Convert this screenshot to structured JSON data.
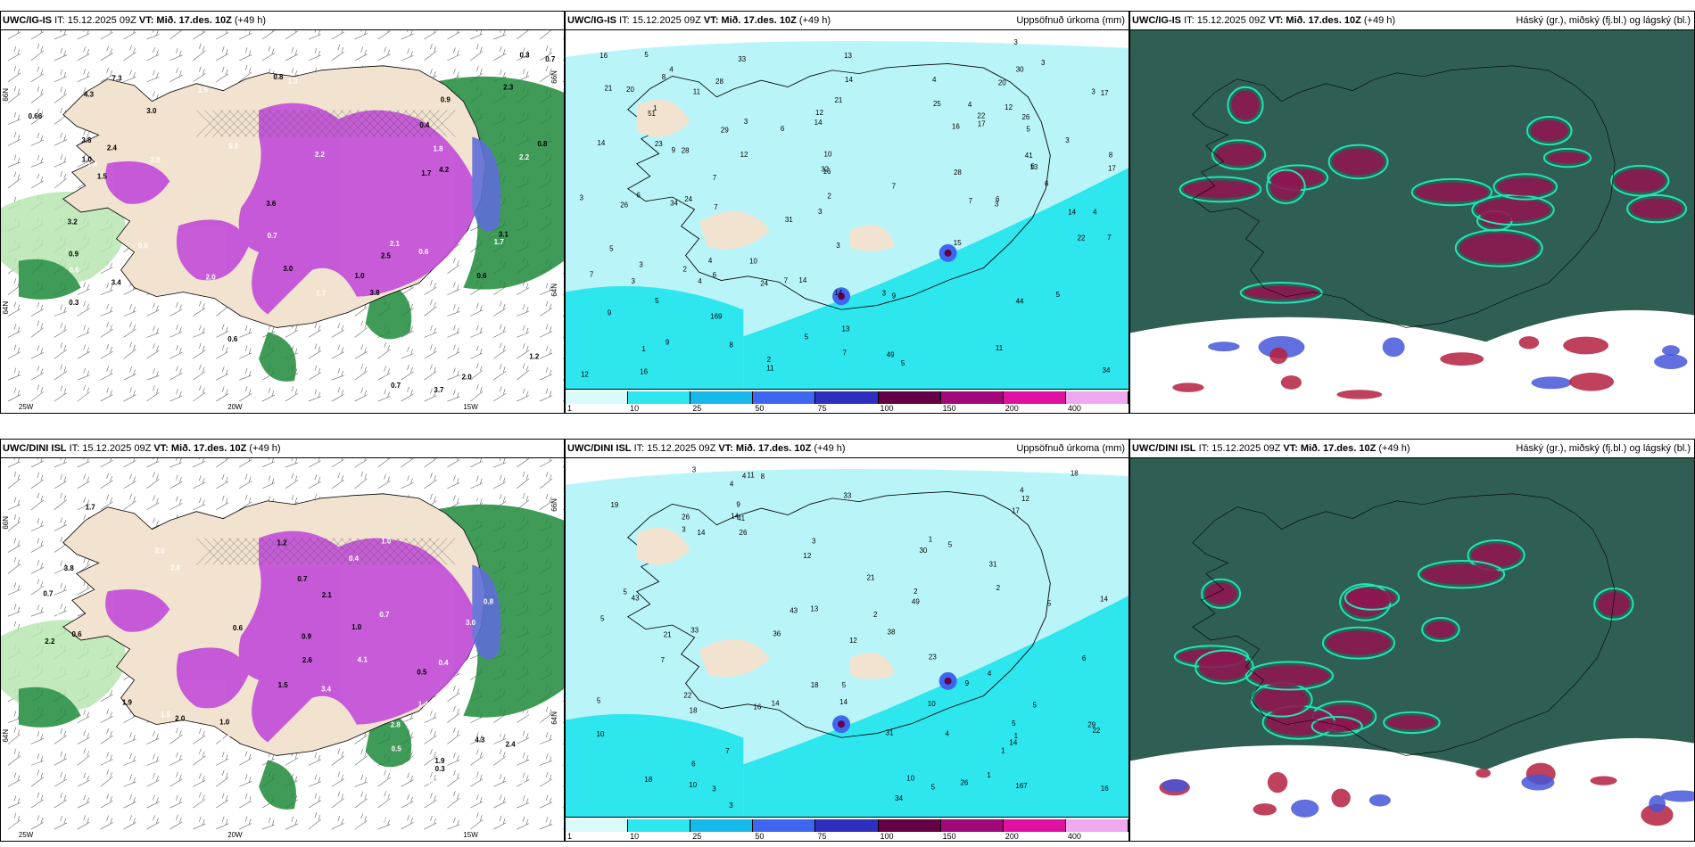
{
  "panels": [
    {
      "id": "tl",
      "model": "UWC/IG-IS",
      "it": "IT: 15.12.2025 09Z",
      "vt_label": "VT:",
      "vt": "Mið. 17.des. 10Z",
      "lead": "(+49 h)",
      "right_title": "",
      "type": "temp",
      "lon_labels": [
        "25W",
        "20W",
        "15W"
      ],
      "lat_labels": [
        "66N",
        "64N",
        "66N",
        "64N"
      ],
      "values": [
        "0.6",
        "0.6",
        "1.2",
        "0.6",
        "0.66",
        "0.7",
        "0.6",
        "3.6",
        "3.2",
        "1.7",
        "2.2",
        "3.8",
        "1.4",
        "0.6",
        "1.2",
        "3.4",
        "4.2",
        "2.8",
        "0.3",
        "1.0",
        "0.4",
        "2.1",
        "2.2",
        "1.3",
        "2.5",
        "3.7",
        "3.6",
        "1.5",
        "3.0",
        "2.4",
        "1.5",
        "7.3",
        "0.9",
        "1.3",
        "2.0",
        "3.0",
        "3.1",
        "0.8",
        "1.0",
        "1.1",
        "2.0",
        "0.5",
        "3.4",
        "0.7",
        "0.6",
        "0.8",
        "1.8",
        "2.3",
        "0.9",
        "0.5",
        "0.7",
        "0.3",
        "0.6",
        "0.3",
        "1.0",
        "1.7",
        "1.7",
        "4.3",
        "5.1"
      ]
    },
    {
      "id": "tm",
      "model": "UWC/IG-IS",
      "it": "IT: 15.12.2025 09Z",
      "vt_label": "VT:",
      "vt": "Mið. 17.des. 10Z",
      "lead": "(+49 h)",
      "right_title": "Uppsöfnuð úrkoma (mm)",
      "type": "precip",
      "values": [
        "7",
        "11",
        "6",
        "3",
        "13",
        "6",
        "3",
        "2",
        "14",
        "4",
        "4",
        "11",
        "2",
        "3",
        "1",
        "3",
        "9",
        "10",
        "6",
        "7",
        "3",
        "1",
        "4",
        "3",
        "7",
        "5",
        "5",
        "9",
        "3",
        "5",
        "6",
        "7",
        "11",
        "4",
        "3",
        "12",
        "8",
        "5",
        "7",
        "2",
        "4",
        "13",
        "7",
        "7",
        "3",
        "9",
        "4",
        "5",
        "3",
        "22",
        "6",
        "9",
        "3",
        "3",
        "6",
        "24",
        "23",
        "16",
        "17",
        "49",
        "28",
        "8",
        "12",
        "5",
        "5",
        "26",
        "26",
        "25",
        "30",
        "29",
        "34",
        "8",
        "7",
        "12",
        "22",
        "16",
        "13",
        "17",
        "28",
        "34",
        "32",
        "44",
        "20",
        "15",
        "10",
        "169",
        "21",
        "14",
        "28",
        "41",
        "33",
        "21",
        "31",
        "14",
        "14",
        "16",
        "12",
        "24",
        "51",
        "16",
        "20",
        "17",
        "14",
        "14"
      ]
    },
    {
      "id": "tr",
      "model": "UWC/IG-IS",
      "it": "IT: 15.12.2025 09Z",
      "vt_label": "VT:",
      "vt": "Mið. 17.des. 10Z",
      "lead": "(+49 h)",
      "right_title": "Háský (gr.), miðský (fj.bl.) og lágský (bl.)",
      "type": "cloud"
    },
    {
      "id": "bl",
      "model": "UWC/DINI ISL",
      "it": "IT: 15.12.2025 09Z",
      "vt_label": "VT:",
      "vt": "Mið. 17.des. 10Z",
      "lead": "(+49 h)",
      "right_title": "",
      "type": "temp",
      "lon_labels": [
        "25W",
        "20W",
        "15W"
      ],
      "lat_labels": [
        "66N",
        "64N",
        "66N",
        "64N"
      ],
      "values": [
        "0.6",
        "0.7",
        "1.2",
        "3.0",
        "0.9",
        "2.5",
        "3.4",
        "0.5",
        "0.5",
        "0.7",
        "1.6",
        "0.4",
        "0.7",
        "1.0",
        "2.0",
        "1.7",
        "2.8",
        "1.9",
        "1.5",
        "2.4",
        "2.1",
        "2.2",
        "2.6",
        "3.2",
        "1.5",
        "1.6",
        "0.9",
        "2.3",
        "2.8",
        "3.8",
        "1.0",
        "1.4",
        "0.8",
        "2.3",
        "1.9",
        "0.6",
        "1.0",
        "2.2",
        "0.9",
        "0.7",
        "0.3",
        "4.1",
        "3.7",
        "2.0",
        "2.4",
        "4.3",
        "0.5",
        "0.4"
      ]
    },
    {
      "id": "bm",
      "model": "UWC/DINI ISL",
      "it": "IT: 15.12.2025 09Z",
      "vt_label": "VT:",
      "vt": "Mið. 17.des. 10Z",
      "lead": "(+49 h)",
      "right_title": "Uppsöfnuð úrkoma (mm)",
      "type": "precip",
      "values": [
        "3",
        "1",
        "2",
        "4",
        "3",
        "10",
        "1",
        "3",
        "2",
        "7",
        "14",
        "5",
        "5",
        "4",
        "3",
        "5",
        "4",
        "5",
        "1",
        "5",
        "10",
        "11",
        "3",
        "5",
        "9",
        "4",
        "7",
        "8",
        "4",
        "9",
        "12",
        "1",
        "5",
        "2",
        "5",
        "16",
        "17",
        "23",
        "26",
        "10",
        "14",
        "43",
        "41",
        "29",
        "34",
        "26",
        "18",
        "14",
        "30",
        "33",
        "49",
        "22",
        "21",
        "18",
        "33",
        "43",
        "19",
        "38",
        "36",
        "31",
        "21",
        "14",
        "31",
        "26",
        "22",
        "167",
        "18",
        "13",
        "12",
        "10",
        "16",
        "6",
        "5",
        "6",
        "14",
        "18",
        "12",
        "14"
      ]
    },
    {
      "id": "br",
      "model": "UWC/DINI ISL",
      "it": "IT: 15.12.2025 09Z",
      "vt_label": "VT:",
      "vt": "Mið. 17.des. 10Z",
      "lead": "(+49 h)",
      "right_title": "Háský (gr.), miðský (fj.bl.) og lágský (bl.)",
      "type": "cloud"
    }
  ],
  "colorbar": {
    "ticks": [
      "1",
      "10",
      "25",
      "50",
      "75",
      "100",
      "150",
      "200",
      "400"
    ],
    "colors": [
      "#d8fafa",
      "#2ee6ee",
      "#16b9e9",
      "#3e66f0",
      "#2f2fbf",
      "#660044",
      "#a1087a",
      "#e011a0",
      "#f0a8f0"
    ]
  },
  "colors": {
    "land": "#f2e3d0",
    "temp_green": "#1e8a3c",
    "temp_purple": "#c24bd8",
    "precip_light": "#b9f5f8",
    "precip_mid": "#2ee6ee",
    "cloud_high": "#2f5e55",
    "cloud_red": "#8e1650",
    "cloud_teal": "#21e6b2"
  }
}
